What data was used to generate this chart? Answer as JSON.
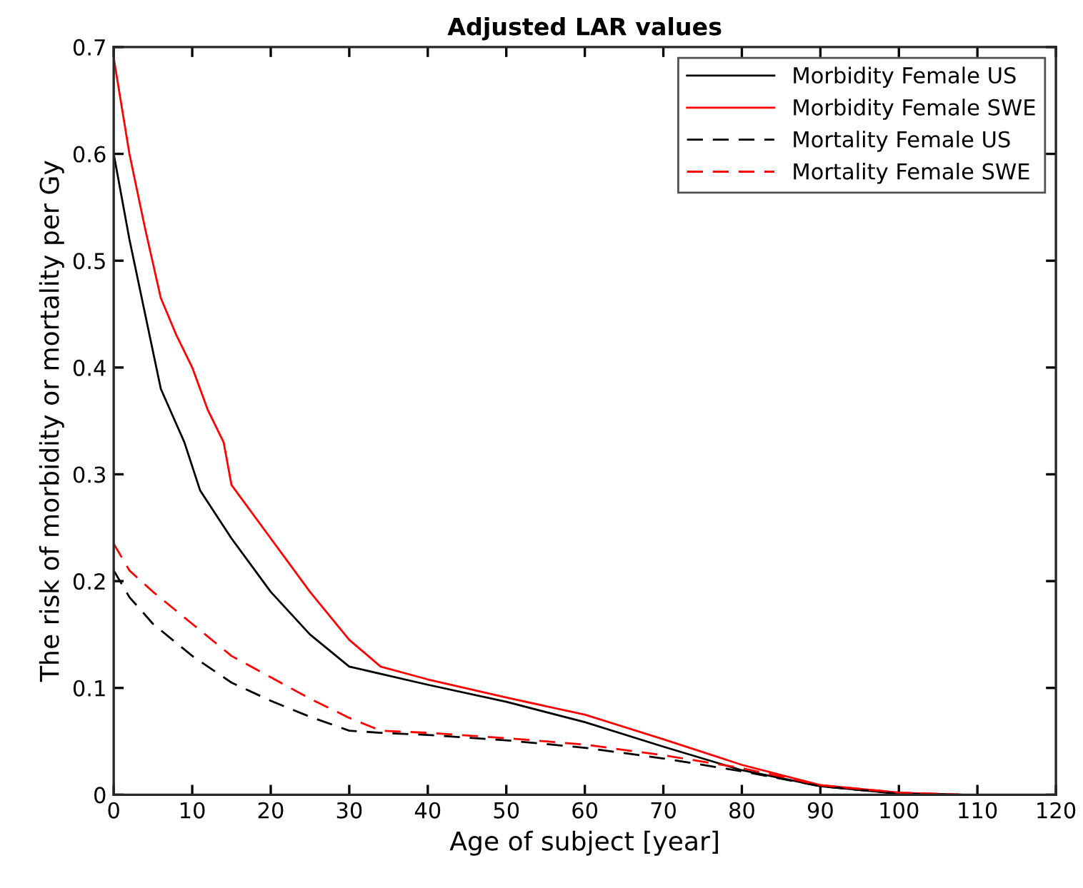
{
  "chart_data": {
    "type": "line",
    "title": "Adjusted LAR values",
    "xlabel": "Age of subject [year]",
    "ylabel": "The risk of morbidity or mortality per Gy",
    "xlim": [
      0,
      120
    ],
    "xticks": [
      0,
      10,
      20,
      30,
      40,
      50,
      60,
      70,
      80,
      90,
      100,
      110,
      120
    ],
    "ylim": [
      0,
      0.7
    ],
    "yticks": [
      0,
      0.1,
      0.2,
      0.3,
      0.4,
      0.5,
      0.6,
      0.7
    ],
    "grid": false,
    "legend": "top right",
    "marker": "none",
    "series": [
      {
        "name": "Morbidity Female US",
        "color": "#000000",
        "line_style": "solid",
        "x": [
          0,
          2,
          4,
          6,
          9,
          11,
          15,
          20,
          25,
          30,
          40,
          50,
          60,
          70,
          80,
          90,
          100,
          108
        ],
        "values": [
          0.6,
          0.52,
          0.45,
          0.38,
          0.33,
          0.285,
          0.24,
          0.19,
          0.15,
          0.12,
          0.103,
          0.087,
          0.068,
          0.045,
          0.023,
          0.008,
          0.001,
          0
        ]
      },
      {
        "name": "Morbidity Female SWE",
        "color": "#ff0000",
        "line_style": "solid",
        "x": [
          0,
          2,
          4,
          6,
          8,
          10,
          12,
          14,
          15,
          20,
          25,
          30,
          34,
          40,
          50,
          60,
          70,
          80,
          90,
          100,
          108
        ],
        "values": [
          0.69,
          0.6,
          0.53,
          0.465,
          0.43,
          0.4,
          0.36,
          0.33,
          0.29,
          0.24,
          0.19,
          0.145,
          0.12,
          0.108,
          0.091,
          0.075,
          0.052,
          0.028,
          0.009,
          0.002,
          0
        ]
      },
      {
        "name": "Mortality Female US",
        "color": "#000000",
        "line_style": "dashed",
        "x": [
          0,
          2,
          5,
          10,
          15,
          20,
          25,
          30,
          34,
          40,
          50,
          60,
          70,
          80,
          90,
          100,
          108
        ],
        "values": [
          0.21,
          0.185,
          0.16,
          0.13,
          0.105,
          0.088,
          0.073,
          0.06,
          0.058,
          0.056,
          0.051,
          0.044,
          0.034,
          0.022,
          0.008,
          0.001,
          0
        ]
      },
      {
        "name": "Mortality Female SWE",
        "color": "#ff0000",
        "line_style": "dashed",
        "x": [
          0,
          2,
          5,
          10,
          15,
          20,
          25,
          30,
          34,
          40,
          50,
          60,
          70,
          80,
          90,
          100,
          108
        ],
        "values": [
          0.235,
          0.21,
          0.19,
          0.16,
          0.13,
          0.11,
          0.09,
          0.072,
          0.06,
          0.058,
          0.053,
          0.047,
          0.037,
          0.025,
          0.009,
          0.002,
          0
        ]
      }
    ]
  }
}
